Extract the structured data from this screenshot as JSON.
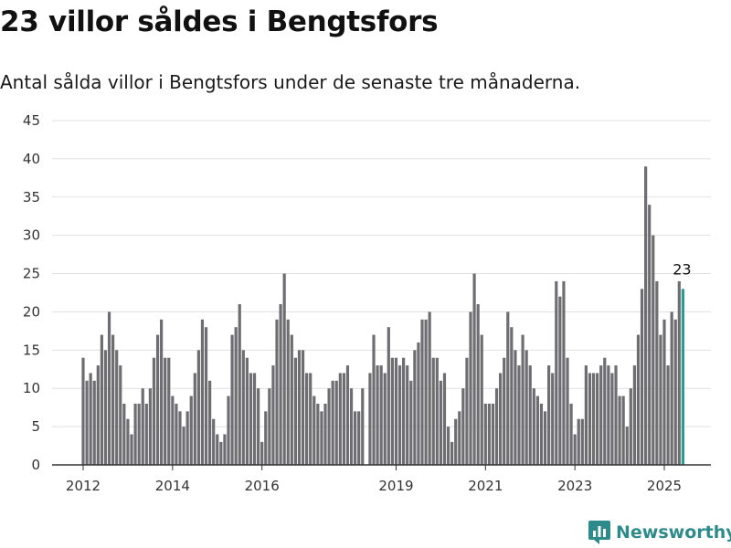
{
  "title": "23 villor såldes i Bengtsfors",
  "subtitle": "Antal sålda villor i Bengtsfors under de senaste tre månaderna.",
  "brand": {
    "name": "Newsworthy",
    "icon": "newsworthy-logo-icon",
    "color": "#2e8b8b"
  },
  "chart_data": {
    "type": "bar",
    "title": "23 villor såldes i Bengtsfors",
    "subtitle": "Antal sålda villor i Bengtsfors under de senaste tre månaderna.",
    "xlabel": "",
    "ylabel": "",
    "ylim": [
      0,
      45
    ],
    "yticks": [
      "0",
      "5",
      "10",
      "15",
      "20",
      "25",
      "30",
      "35",
      "40",
      "45"
    ],
    "grid": true,
    "bar_color": "#6e6d72",
    "highlight_color": "#2a9d94",
    "segments": [
      {
        "xstart": [
          2012,
          0
        ],
        "values": [
          14,
          11,
          12,
          11,
          13,
          17,
          15,
          20,
          17,
          15,
          13,
          8,
          6,
          4,
          8,
          8,
          10,
          8,
          10,
          14,
          17,
          19,
          14,
          14
        ]
      },
      {
        "xstart": [
          2014,
          0
        ],
        "values": [
          9,
          8,
          7,
          5,
          7,
          9,
          12,
          15,
          19,
          18,
          11,
          6,
          4,
          3,
          4,
          9,
          17,
          18,
          21,
          15,
          14,
          12,
          12,
          10,
          3,
          7,
          10,
          13,
          19,
          21,
          25,
          19,
          17,
          14,
          15,
          15,
          12,
          12,
          9,
          8,
          7,
          8,
          10,
          11,
          11,
          12,
          12,
          13,
          10,
          7,
          7,
          10
        ]
      },
      {
        "xstart": [
          2018,
          5
        ],
        "values": [
          12,
          17,
          13,
          13,
          12,
          18,
          14,
          14,
          13,
          14,
          13,
          11,
          15,
          16,
          19,
          19,
          20,
          14,
          14,
          11,
          12,
          5,
          3,
          6,
          7,
          10,
          14,
          20,
          25,
          21,
          17,
          8,
          8,
          8,
          10,
          12,
          14,
          20,
          18,
          15,
          13,
          17,
          15,
          13,
          10,
          9,
          8,
          7,
          13,
          12,
          24,
          22,
          24,
          14,
          8,
          4,
          6,
          6,
          13,
          12,
          12,
          12,
          13,
          14,
          13,
          12,
          13,
          9,
          9,
          5,
          10,
          13,
          17,
          23,
          39,
          34,
          30,
          24,
          17,
          19,
          13,
          20,
          19,
          24,
          23
        ]
      }
    ],
    "xticks": [
      {
        "label": "2012",
        "year": 2012
      },
      {
        "label": "2014",
        "year": 2014
      },
      {
        "label": "2016",
        "year": 2016
      },
      {
        "label": "2019",
        "year": 2019
      },
      {
        "label": "2021",
        "year": 2021
      },
      {
        "label": "2023",
        "year": 2023
      },
      {
        "label": "2025",
        "year": 2025
      }
    ],
    "annotation": {
      "text": "23",
      "target": "last"
    }
  }
}
